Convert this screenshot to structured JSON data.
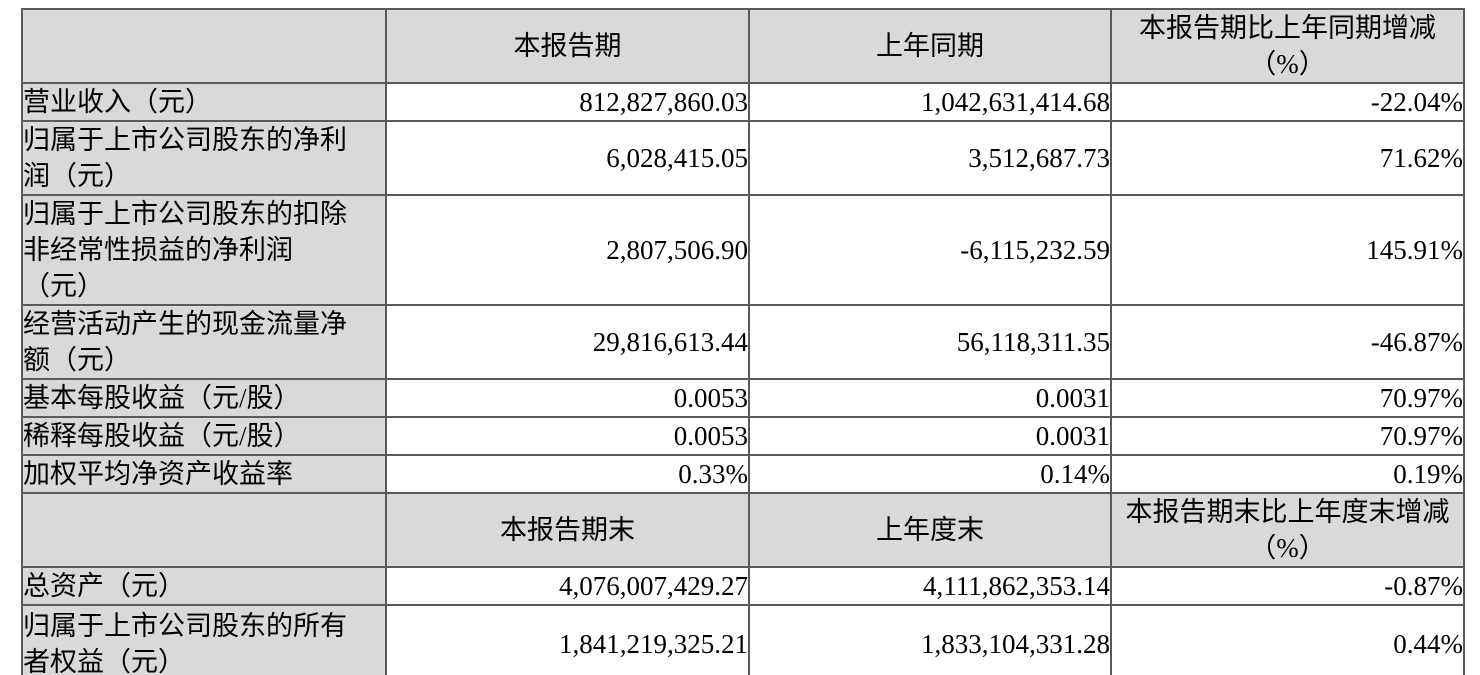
{
  "sections": [
    {
      "header": {
        "label": "",
        "current": "本报告期",
        "prior": "上年同期",
        "change": "本报告期比上年同期增减\n（%）"
      },
      "rows": [
        {
          "label": "营业收入（元）",
          "current": "812,827,860.03",
          "prior": "1,042,631,414.68",
          "change": "-22.04%"
        },
        {
          "label": "归属于上市公司股东的净利\n润（元）",
          "current": "6,028,415.05",
          "prior": "3,512,687.73",
          "change": "71.62%"
        },
        {
          "label": "归属于上市公司股东的扣除\n非经常性损益的净利润\n（元）",
          "current": "2,807,506.90",
          "prior": "-6,115,232.59",
          "change": "145.91%"
        },
        {
          "label": "经营活动产生的现金流量净\n额（元）",
          "current": "29,816,613.44",
          "prior": "56,118,311.35",
          "change": "-46.87%"
        },
        {
          "label": "基本每股收益（元/股）",
          "current": "0.0053",
          "prior": "0.0031",
          "change": "70.97%"
        },
        {
          "label": "稀释每股收益（元/股）",
          "current": "0.0053",
          "prior": "0.0031",
          "change": "70.97%"
        },
        {
          "label": "加权平均净资产收益率",
          "current": "0.33%",
          "prior": "0.14%",
          "change": "0.19%"
        }
      ]
    },
    {
      "header": {
        "label": "",
        "current": "本报告期末",
        "prior": "上年度末",
        "change": "本报告期末比上年度末增减\n（%）"
      },
      "rows": [
        {
          "label": "总资产（元）",
          "current": "4,076,007,429.27",
          "prior": "4,111,862,353.14",
          "change": "-0.87%"
        },
        {
          "label": "归属于上市公司股东的所有\n者权益（元）",
          "current": "1,841,219,325.21",
          "prior": "1,833,104,331.28",
          "change": "0.44%"
        }
      ]
    }
  ]
}
